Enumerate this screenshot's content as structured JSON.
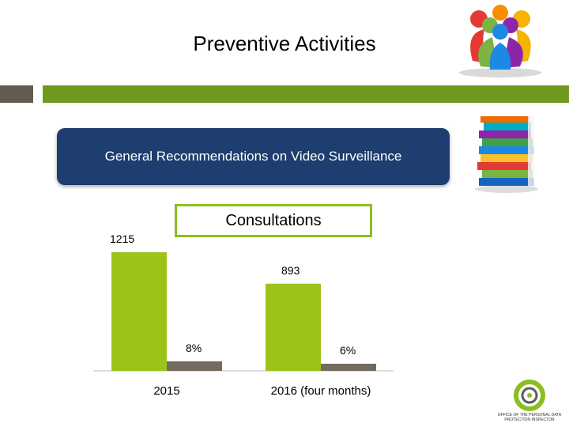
{
  "slide": {
    "title": "Preventive Activities",
    "recommendation_label": "General Recommendations on Video Surveillance",
    "consultations_label": "Consultations",
    "org_logo_text": "OFFICE OF THE PERSONAL DATA PROTECTION INSPECTOR"
  },
  "colors": {
    "accent_green": "#6f9a1f",
    "bar_green": "#9bc31a",
    "bar_gray": "#726b5e",
    "navy": "#1d3e6e"
  },
  "chart_data": {
    "type": "bar",
    "categories": [
      "2015",
      "2016 (four months)"
    ],
    "series": [
      {
        "values": [
          1215,
          893
        ],
        "labels": [
          "1215",
          "893"
        ]
      },
      {
        "values": [
          8,
          6
        ],
        "labels": [
          "8%",
          "6%"
        ]
      }
    ],
    "legend": "none",
    "grid": false
  }
}
